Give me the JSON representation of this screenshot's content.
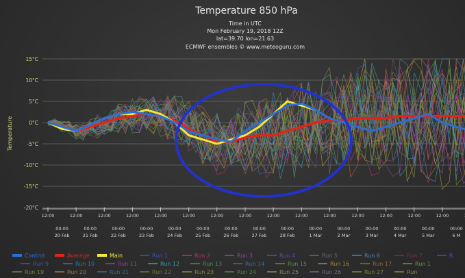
{
  "chart_data": {
    "type": "line",
    "title": "Temperature 850 hPa",
    "subtitle_lines": [
      "Time in UTC",
      "Mon February 19, 2018 12Z",
      "lat=39.70 lon=21.63",
      "ECMWF ensembles © www.meteoguru.com"
    ],
    "ylabel": "Temperature",
    "ylim": [
      -20,
      15
    ],
    "y_ticks": [
      "15°C",
      "10°C",
      "5°C",
      "0°C",
      "-5°C",
      "-10°C",
      "-15°C",
      "-20°C"
    ],
    "y_tick_values": [
      15,
      10,
      5,
      0,
      -5,
      -10,
      -15,
      -20
    ],
    "x_ticks_time": [
      "12:00",
      "12:00",
      "12:00",
      "12:00",
      "12:00",
      "12:00",
      "12:00",
      "12:00",
      "12:00",
      "12:00",
      "12:00",
      "12:00",
      "12:00",
      "12:00",
      "12:00",
      "12:00"
    ],
    "x_ticks_midnight": [
      "00:00",
      "00:00",
      "00:00",
      "00:00",
      "00:00",
      "00:00",
      "00:00",
      "00:00",
      "00:00",
      "00:00",
      "00:00",
      "00:00",
      "00:00",
      "00:00",
      "00:00"
    ],
    "x_ticks_date": [
      "20 Feb",
      "21 Feb",
      "22 Feb",
      "23 Feb",
      "24 Feb",
      "25 Feb",
      "26 Feb",
      "27 Feb",
      "28 Feb",
      "1 Mar",
      "2 Mar",
      "3 Mar",
      "4 Mar",
      "5 Mar",
      "6 M"
    ],
    "x_step_days": [
      0,
      0.5,
      1,
      1.5,
      2,
      2.5,
      3,
      3.5,
      4,
      4.5,
      5,
      5.5,
      6,
      6.5,
      7,
      7.5,
      8,
      8.5,
      9,
      9.5,
      10,
      10.5,
      11,
      11.5,
      12,
      12.5,
      13,
      13.5,
      14,
      14.5,
      15
    ],
    "grid": true,
    "series": [
      {
        "name": "Average",
        "color": "#e0241b",
        "values": [
          0,
          -1,
          -2,
          -1,
          0,
          1,
          1.5,
          2,
          1.5,
          0.5,
          -1.5,
          -3,
          -4.5,
          -4.5,
          -3.5,
          -3,
          -3,
          -2,
          -1,
          0,
          0.5,
          0.5,
          1,
          1,
          1,
          1.5,
          1.5,
          1.5,
          1.5,
          1.5,
          1.5
        ]
      },
      {
        "name": "Main",
        "color": "#f2ea3a",
        "values": [
          0,
          -1.5,
          -2,
          -0.5,
          1,
          2,
          2,
          3,
          2,
          0,
          -3,
          -4,
          -5,
          -4,
          -3,
          -1,
          2,
          5,
          4,
          3,
          null,
          null,
          null,
          null,
          null,
          null,
          null,
          null,
          null,
          null,
          null
        ]
      },
      {
        "name": "Control",
        "color": "#2a6fd6",
        "values": [
          0,
          -1,
          -2,
          -0.5,
          1,
          2,
          2.5,
          2,
          1.5,
          0,
          -2,
          -3,
          -4,
          -4.5,
          -2,
          0,
          2,
          4,
          4.5,
          3,
          1,
          0,
          -1,
          -2,
          -1,
          0,
          1,
          2,
          0,
          -1,
          -2
        ]
      }
    ],
    "legend_rows": [
      [
        "Control",
        "Average",
        "Main",
        "Run 1",
        "Run 2",
        "Run 3",
        "Run 4",
        "Run 5",
        "Run 6",
        "Run 7",
        "R"
      ],
      [
        "Run 9",
        "Run 10",
        "Run 11",
        "Run 12",
        "Run 13",
        "Run 14",
        "Run 15",
        "Run 16",
        "Run 17",
        "Run 1"
      ],
      [
        "Run 19",
        "Run 20",
        "Run 21",
        "Run 22",
        "Run 23",
        "Run 24",
        "Run 25",
        "Run 26",
        "Run 27",
        "Run"
      ]
    ],
    "legend_colors": [
      [
        "#2a6fd6",
        "#e0241b",
        "#f2ea3a",
        "#3a55b8",
        "#c0306a",
        "#9a40b0",
        "#5a4fb0",
        "#6a6a6a",
        "#4a8ab8",
        "#8a2a40",
        "#3a55b8"
      ],
      [
        "#3a55b8",
        "#2a7ab0",
        "#8a4a8a",
        "#3aa0b0",
        "#4a8a6a",
        "#3a6ab0",
        "#6a8a4a",
        "#a08a3a",
        "#8a6a3a",
        "#6a9a3a"
      ],
      [
        "#6a8a3a",
        "#a07a3a",
        "#3a6a8a",
        "#6a7a3a",
        "#8a8a3a",
        "#4a8a4a",
        "#8a8a6a",
        "#6a6a8a",
        "#7a8a3a",
        "#8a8a3a"
      ]
    ],
    "annotation_circle_color": "#2233cc"
  }
}
